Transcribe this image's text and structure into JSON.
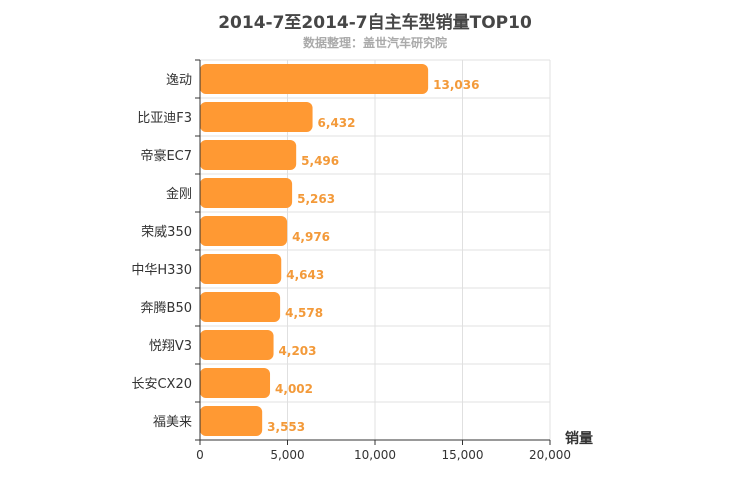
{
  "chart_data": {
    "type": "bar",
    "orientation": "horizontal",
    "title": "2014-7至2014-7自主车型销量TOP10",
    "subtitle": "数据整理：盖世汽车研究院",
    "xlabel": "销量",
    "ylabel": "",
    "categories": [
      "逸动",
      "比亚迪F3",
      "帝豪EC7",
      "金刚",
      "荣威350",
      "中华H330",
      "奔腾B50",
      "悦翔V3",
      "长安CX20",
      "福美来"
    ],
    "values": [
      13036,
      6432,
      5496,
      5263,
      4976,
      4643,
      4578,
      4203,
      4002,
      3553
    ],
    "value_labels": [
      "13,036",
      "6,432",
      "5,496",
      "5,263",
      "4,976",
      "4,643",
      "4,578",
      "4,203",
      "4,002",
      "3,553"
    ],
    "xlim": [
      0,
      20000
    ],
    "ticks": [
      0,
      5000,
      10000,
      15000,
      20000
    ],
    "tick_labels": [
      "0",
      "5,000",
      "10,000",
      "15,000",
      "20,000"
    ],
    "bar_color": "#ff9933",
    "label_color": "#f39a3a",
    "grid": true,
    "legend": "none"
  }
}
